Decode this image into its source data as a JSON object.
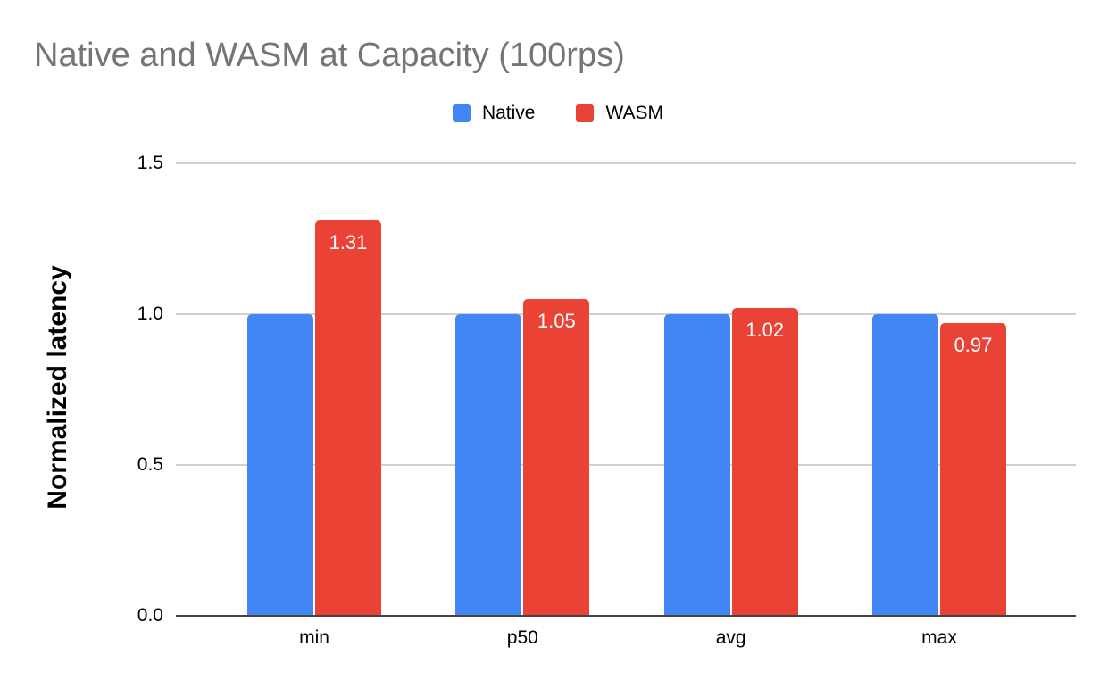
{
  "title": "Native and WASM at Capacity (100rps)",
  "chart_data": {
    "type": "bar",
    "title": "Native and WASM at Capacity (100rps)",
    "categories": [
      "min",
      "p50",
      "avg",
      "max"
    ],
    "series": [
      {
        "name": "Native",
        "color": "#4285F4",
        "values": [
          1.0,
          1.0,
          1.0,
          1.0
        ]
      },
      {
        "name": "WASM",
        "color": "#EA4335",
        "values": [
          1.31,
          1.05,
          1.02,
          0.97
        ],
        "data_labels": [
          "1.31",
          "1.05",
          "1.02",
          "0.97"
        ]
      }
    ],
    "xlabel": "",
    "ylabel": "Normalized latency",
    "ylim": [
      0,
      1.5
    ],
    "yticks": [
      "0.0",
      "0.5",
      "1.0",
      "1.5"
    ],
    "grid": true,
    "legend_position": "top-center",
    "data_label_color": "#FFFFFF"
  },
  "colors": {
    "background": "#FFFFFF",
    "title_text": "#757575",
    "axis_text": "#000000",
    "gridline": "#D0D0D0",
    "axis_line": "#424242",
    "native_bar": "#4285F4",
    "wasm_bar": "#EA4335"
  }
}
